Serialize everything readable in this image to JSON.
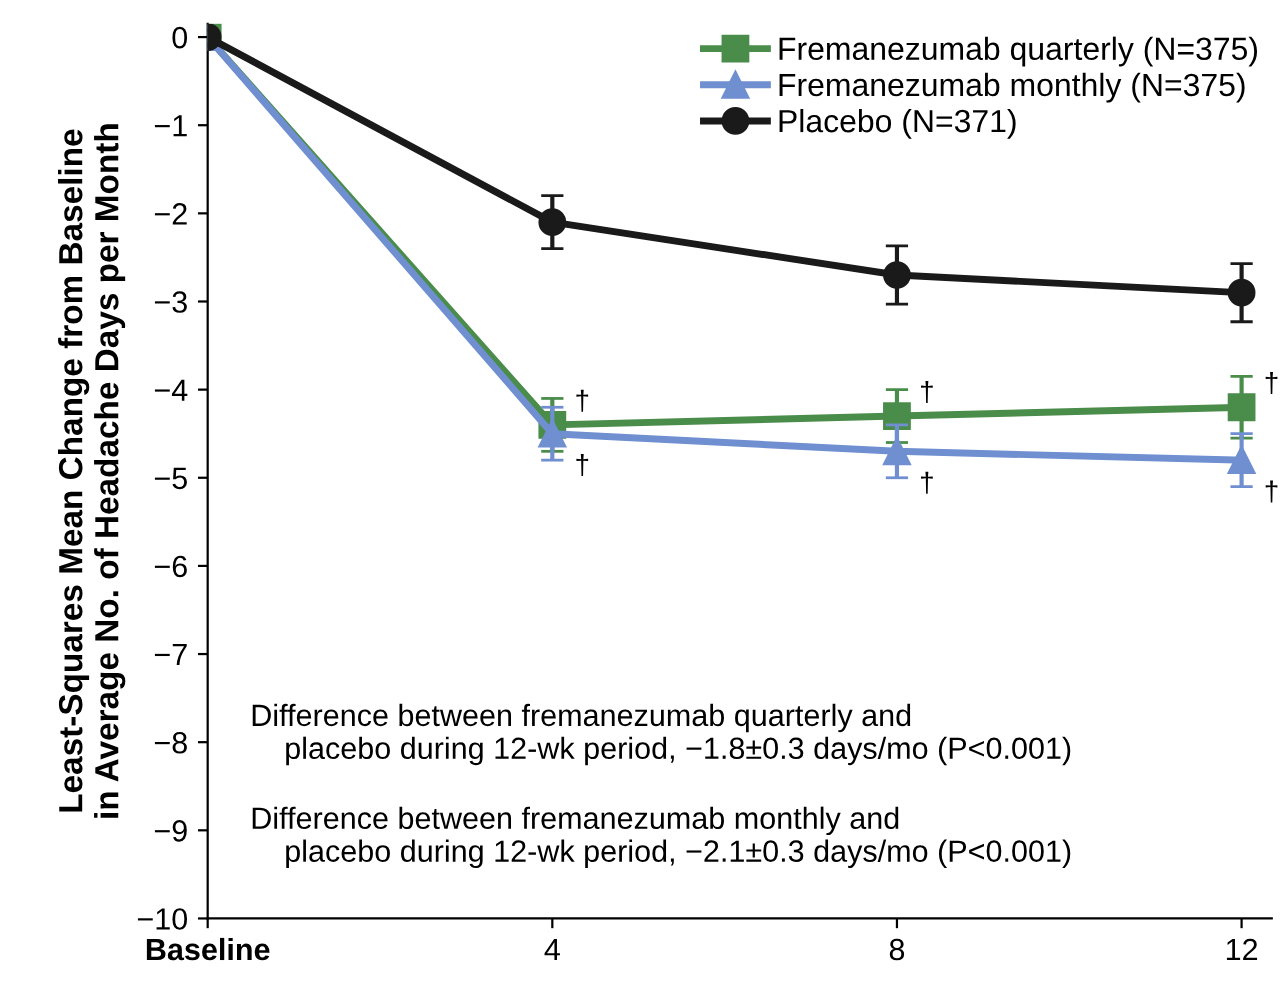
{
  "chart_data": {
    "type": "line",
    "ylabel": "Least-Squares Mean Change from Baseline\nin Average No. of Headache Days per Month",
    "x": [
      0,
      4,
      8,
      12
    ],
    "xlim": [
      0,
      12.35
    ],
    "xticks": [
      {
        "value": 0,
        "label": "Baseline"
      },
      4,
      8,
      12
    ],
    "ylim": [
      -10,
      0.15
    ],
    "yticks": [
      {
        "value": 0,
        "label": "0"
      },
      {
        "value": -1,
        "label": "−1"
      },
      {
        "value": -2,
        "label": "−2"
      },
      {
        "value": -3,
        "label": "−3"
      },
      {
        "value": -4,
        "label": "−4"
      },
      {
        "value": -5,
        "label": "−5"
      },
      {
        "value": -6,
        "label": "−6"
      },
      {
        "value": -7,
        "label": "−7"
      },
      {
        "value": -8,
        "label": "−8"
      },
      {
        "value": -9,
        "label": "−9"
      },
      {
        "value": -10,
        "label": "−10"
      }
    ],
    "series": [
      {
        "name": "Fremanezumab quarterly (N=375)",
        "color": "#4a8c4a",
        "marker": "square",
        "values": [
          0,
          -4.4,
          -4.3,
          -4.2
        ],
        "errors": [
          null,
          0.3,
          0.3,
          0.35
        ]
      },
      {
        "name": "Fremanezumab monthly (N=375)",
        "color": "#6f8fd0",
        "marker": "triangle",
        "values": [
          0,
          -4.5,
          -4.7,
          -4.8
        ],
        "errors": [
          null,
          0.3,
          0.3,
          0.3
        ]
      },
      {
        "name": "Placebo (N=371)",
        "color": "#1a1a1a",
        "marker": "circle",
        "values": [
          0,
          -2.1,
          -2.7,
          -2.9
        ],
        "errors": [
          null,
          0.3,
          0.33,
          0.33
        ]
      }
    ],
    "annotations": [
      {
        "text": "†",
        "x": 4,
        "y": -4.4
      },
      {
        "text": "†",
        "x": 8,
        "y": -4.3
      },
      {
        "text": "†",
        "x": 12,
        "y": -4.2
      },
      {
        "text": "†",
        "x": 4,
        "y": -4.5
      },
      {
        "text": "†",
        "x": 8,
        "y": -4.7
      },
      {
        "text": "†",
        "x": 12,
        "y": -4.8
      },
      "Difference between fremanezumab quarterly and\n    placebo during 12-wk period, −1.8±0.3 days/mo (P<0.001)",
      "Difference between fremanezumab monthly and\n    placebo during 12-wk period, −2.1±0.3 days/mo (P<0.001)"
    ],
    "legend": "top right",
    "grid": false
  }
}
